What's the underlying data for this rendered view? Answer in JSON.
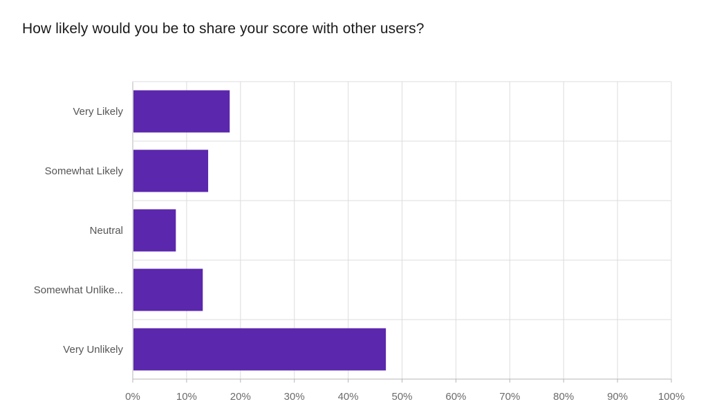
{
  "question": {
    "title": "How likely would you be to share your score with other users?"
  },
  "colors": {
    "bar": "#5b27ad",
    "grid": "#dcdcdc",
    "axis": "#b5b5b5"
  },
  "chart_data": {
    "type": "bar",
    "orientation": "horizontal",
    "categories": [
      "Very Likely",
      "Somewhat Likely",
      "Neutral",
      "Somewhat Unlike...",
      "Very Unlikely"
    ],
    "values": [
      18,
      14,
      8,
      13,
      47
    ],
    "unit": "%",
    "xlim": [
      0,
      100
    ],
    "xticks": [
      "0%",
      "10%",
      "20%",
      "30%",
      "40%",
      "50%",
      "60%",
      "70%",
      "80%",
      "90%",
      "100%"
    ],
    "grid": true,
    "title": "How likely would you be to share your score with other users?",
    "xlabel": "",
    "ylabel": ""
  }
}
